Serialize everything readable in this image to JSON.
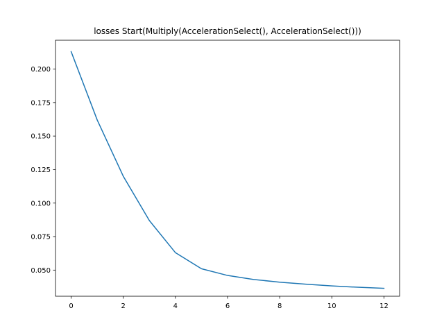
{
  "chart_data": {
    "type": "line",
    "title": "losses Start(Multiply(AccelerationSelect(), AccelerationSelect()))",
    "xlabel": "",
    "ylabel": "",
    "xlim": [
      -0.6,
      12.6
    ],
    "ylim": [
      0.0305,
      0.2215
    ],
    "x_ticks": [
      0,
      2,
      4,
      6,
      8,
      10,
      12
    ],
    "x_tick_labels": [
      "0",
      "2",
      "4",
      "6",
      "8",
      "10",
      "12"
    ],
    "y_ticks": [
      0.05,
      0.075,
      0.1,
      0.125,
      0.15,
      0.175,
      0.2
    ],
    "y_tick_labels": [
      "0.050",
      "0.075",
      "0.100",
      "0.125",
      "0.150",
      "0.175",
      "0.200"
    ],
    "grid": false,
    "legend": "none",
    "series": [
      {
        "color": "#1f77b4",
        "x": [
          0,
          1,
          2,
          3,
          4,
          5,
          6,
          7,
          8,
          9,
          10,
          11,
          12
        ],
        "values": [
          0.213,
          0.162,
          0.12,
          0.087,
          0.063,
          0.051,
          0.046,
          0.043,
          0.041,
          0.0395,
          0.0382,
          0.0372,
          0.0364
        ]
      }
    ]
  }
}
